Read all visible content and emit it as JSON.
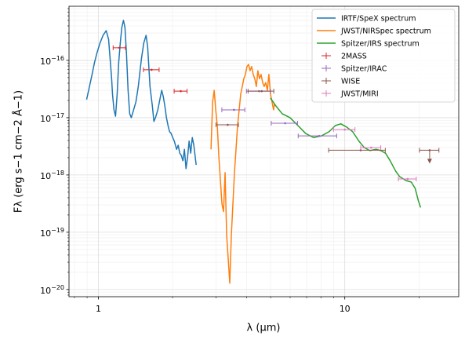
{
  "chart_data": {
    "type": "line",
    "xlabel": "λ (μm)",
    "ylabel": "Fλ (erg s−1 cm−2 Å−1)",
    "xlog": true,
    "ylog": true,
    "grid": true,
    "minor_grid": true,
    "legend": "upper right",
    "xlim": [
      0.76,
      29
    ],
    "ylim": [
      7.5e-21,
      8.8e-16
    ],
    "xticks": [
      1,
      10
    ],
    "xminorticks": [
      0.8,
      0.9,
      2,
      3,
      4,
      5,
      6,
      7,
      8,
      9,
      20
    ],
    "yticks": [
      {
        "value": 1e-20,
        "label": "10",
        "exp": "−20"
      },
      {
        "value": 1e-19,
        "label": "10",
        "exp": "−19"
      },
      {
        "value": 1e-18,
        "label": "10",
        "exp": "−18"
      },
      {
        "value": 1e-17,
        "label": "10",
        "exp": "−17"
      },
      {
        "value": 1e-16,
        "label": "10",
        "exp": "−16"
      }
    ],
    "yminorticks": [
      8e-21,
      9e-21,
      2e-20,
      3e-20,
      4e-20,
      5e-20,
      6e-20,
      7e-20,
      8e-20,
      9e-20,
      2e-19,
      3e-19,
      4e-19,
      5e-19,
      6e-19,
      7e-19,
      8e-19,
      9e-19,
      2e-18,
      3e-18,
      4e-18,
      5e-18,
      6e-18,
      7e-18,
      8e-18,
      9e-18,
      2e-17,
      3e-17,
      4e-17,
      5e-17,
      6e-17,
      7e-17,
      8e-17,
      9e-17,
      2e-16,
      3e-16,
      4e-16,
      5e-16,
      6e-16,
      7e-16,
      8e-16
    ],
    "series": [
      {
        "name": "IRTF/SpeX spectrum",
        "type": "line",
        "color": "#1f77b4",
        "x": [
          0.896,
          0.916,
          0.943,
          0.964,
          0.986,
          1.015,
          1.045,
          1.076,
          1.1,
          1.116,
          1.132,
          1.141,
          1.157,
          1.174,
          1.192,
          1.209,
          1.227,
          1.245,
          1.264,
          1.282,
          1.301,
          1.32,
          1.34,
          1.36,
          1.39,
          1.42,
          1.452,
          1.495,
          1.528,
          1.562,
          1.585,
          1.62,
          1.656,
          1.68,
          1.705,
          1.743,
          1.781,
          1.807,
          1.834,
          1.861,
          1.889,
          1.917,
          1.945,
          1.974,
          2.003,
          2.033,
          2.077,
          2.108,
          2.139,
          2.17,
          2.203,
          2.235,
          2.268,
          2.302,
          2.335,
          2.37,
          2.405,
          2.44,
          2.494
        ],
        "values": [
          2.07e-17,
          3.2e-17,
          5.7e-17,
          9.1e-17,
          1.33e-16,
          2e-16,
          2.74e-16,
          3.3e-16,
          2.34e-16,
          1.06e-16,
          4.8e-17,
          2.6e-17,
          1.37e-17,
          1.06e-17,
          2.6e-17,
          9.1e-17,
          2e-16,
          3.76e-16,
          5e-16,
          3.76e-16,
          1.25e-16,
          3e-17,
          1.17e-17,
          1e-17,
          1.37e-17,
          1.88e-17,
          3.5e-17,
          1.06e-16,
          2e-16,
          2.74e-16,
          1.71e-16,
          3.5e-17,
          1.6e-17,
          8.6e-18,
          1e-17,
          1.37e-17,
          2.2e-17,
          3e-17,
          2.34e-17,
          1.6e-17,
          1e-17,
          7.3e-18,
          5.7e-18,
          5.3e-18,
          4.5e-18,
          3.9e-18,
          2.8e-18,
          3.3e-18,
          2.4e-18,
          2.2e-18,
          1.77e-18,
          2.8e-18,
          1.29e-18,
          2.07e-18,
          3.9e-18,
          2.4e-18,
          4.5e-18,
          3.3e-18,
          1.5e-18
        ]
      },
      {
        "name": "JWST/NIRSpec spectrum",
        "type": "line",
        "color": "#ff7f0e",
        "x": [
          2.865,
          2.908,
          2.951,
          2.994,
          3.038,
          3.083,
          3.128,
          3.174,
          3.22,
          3.268,
          3.316,
          3.365,
          3.414,
          3.464,
          3.515,
          3.567,
          3.619,
          3.672,
          3.727,
          3.782,
          3.837,
          3.893,
          3.951,
          4.009,
          4.068,
          4.127,
          4.188,
          4.25,
          4.312,
          4.376,
          4.44,
          4.505,
          4.572,
          4.642,
          4.71,
          4.778,
          4.85,
          4.92,
          4.993,
          5.067,
          5.14,
          5.18
        ],
        "values": [
          2.8e-18,
          1.88e-17,
          3e-17,
          1.37e-17,
          7.3e-18,
          2.07e-18,
          8e-19,
          3.1e-19,
          2.3e-19,
          1.1e-18,
          8.8e-20,
          3.4e-20,
          1.29e-20,
          8.8e-20,
          3.1e-19,
          1.1e-18,
          2.8e-18,
          7.3e-18,
          1.37e-17,
          2.6e-17,
          3.5e-17,
          4.8e-17,
          5.7e-17,
          7.8e-17,
          8.5e-17,
          6.6e-17,
          7.8e-17,
          5.7e-17,
          4.8e-17,
          3.5e-17,
          6.6e-17,
          4.8e-17,
          5.7e-17,
          4.1e-17,
          3.5e-17,
          4.1e-17,
          3e-17,
          5.7e-17,
          2.6e-17,
          1.88e-17,
          1.37e-17,
          1.71e-17
        ]
      },
      {
        "name": "Spitzer/IRS spectrum",
        "type": "line",
        "color": "#2ca02c",
        "x": [
          4.993,
          5.255,
          5.572,
          5.995,
          6.45,
          6.939,
          7.464,
          8.03,
          8.64,
          9.16,
          9.64,
          10.15,
          10.76,
          11.41,
          12.0,
          12.64,
          13.4,
          14.0,
          14.63,
          15.28,
          16.08,
          16.68,
          17.7,
          18.62,
          19.31,
          19.87,
          20.3
        ],
        "values": [
          2.2e-17,
          1.6e-17,
          1.17e-17,
          1e-17,
          7.3e-18,
          5.3e-18,
          4.5e-18,
          4.8e-18,
          5.7e-18,
          7.3e-18,
          7.8e-18,
          6.9e-18,
          5.7e-18,
          3.9e-18,
          3e-18,
          2.66e-18,
          2.8e-18,
          2.66e-18,
          2.4e-18,
          1.77e-18,
          1.17e-18,
          9.4e-19,
          8e-19,
          7.5e-19,
          5.8e-19,
          3.6e-19,
          2.7e-19
        ]
      },
      {
        "name": "2MASS",
        "type": "errorbar",
        "color": "#d62728",
        "x": [
          1.218,
          1.644,
          2.16
        ],
        "xerr": [
          0.07,
          0.12,
          0.13
        ],
        "values": [
          1.66e-16,
          6.85e-17,
          2.9e-17
        ],
        "upper_limits": [
          false,
          false,
          false
        ]
      },
      {
        "name": "Spitzer/IRAC",
        "type": "errorbar",
        "color": "#9467bd",
        "x": [
          3.55,
          4.49,
          5.73,
          7.87
        ],
        "xerr": [
          0.38,
          0.5,
          0.7,
          1.4
        ],
        "values": [
          1.37e-17,
          2.9e-17,
          8e-18,
          4.8e-18
        ],
        "upper_limits": [
          false,
          false,
          false,
          false
        ]
      },
      {
        "name": "WISE",
        "type": "errorbar",
        "color": "#8c564b",
        "x": [
          3.35,
          4.6,
          11.6,
          22.1
        ],
        "xerr": [
          0.35,
          0.55,
          3.0,
          2.0
        ],
        "values": [
          7.5e-18,
          2.9e-17,
          2.7e-18,
          2.7e-18
        ],
        "upper_limits": [
          false,
          false,
          false,
          true
        ]
      },
      {
        "name": "JWST/MIRI",
        "type": "errorbar",
        "color": "#e377c2",
        "x": [
          10.0,
          12.8,
          18.0
        ],
        "xerr": [
          1.0,
          1.2,
          1.5
        ],
        "values": [
          6.2e-18,
          3e-18,
          8.5e-19
        ],
        "upper_limits": [
          false,
          false,
          false
        ]
      }
    ]
  }
}
